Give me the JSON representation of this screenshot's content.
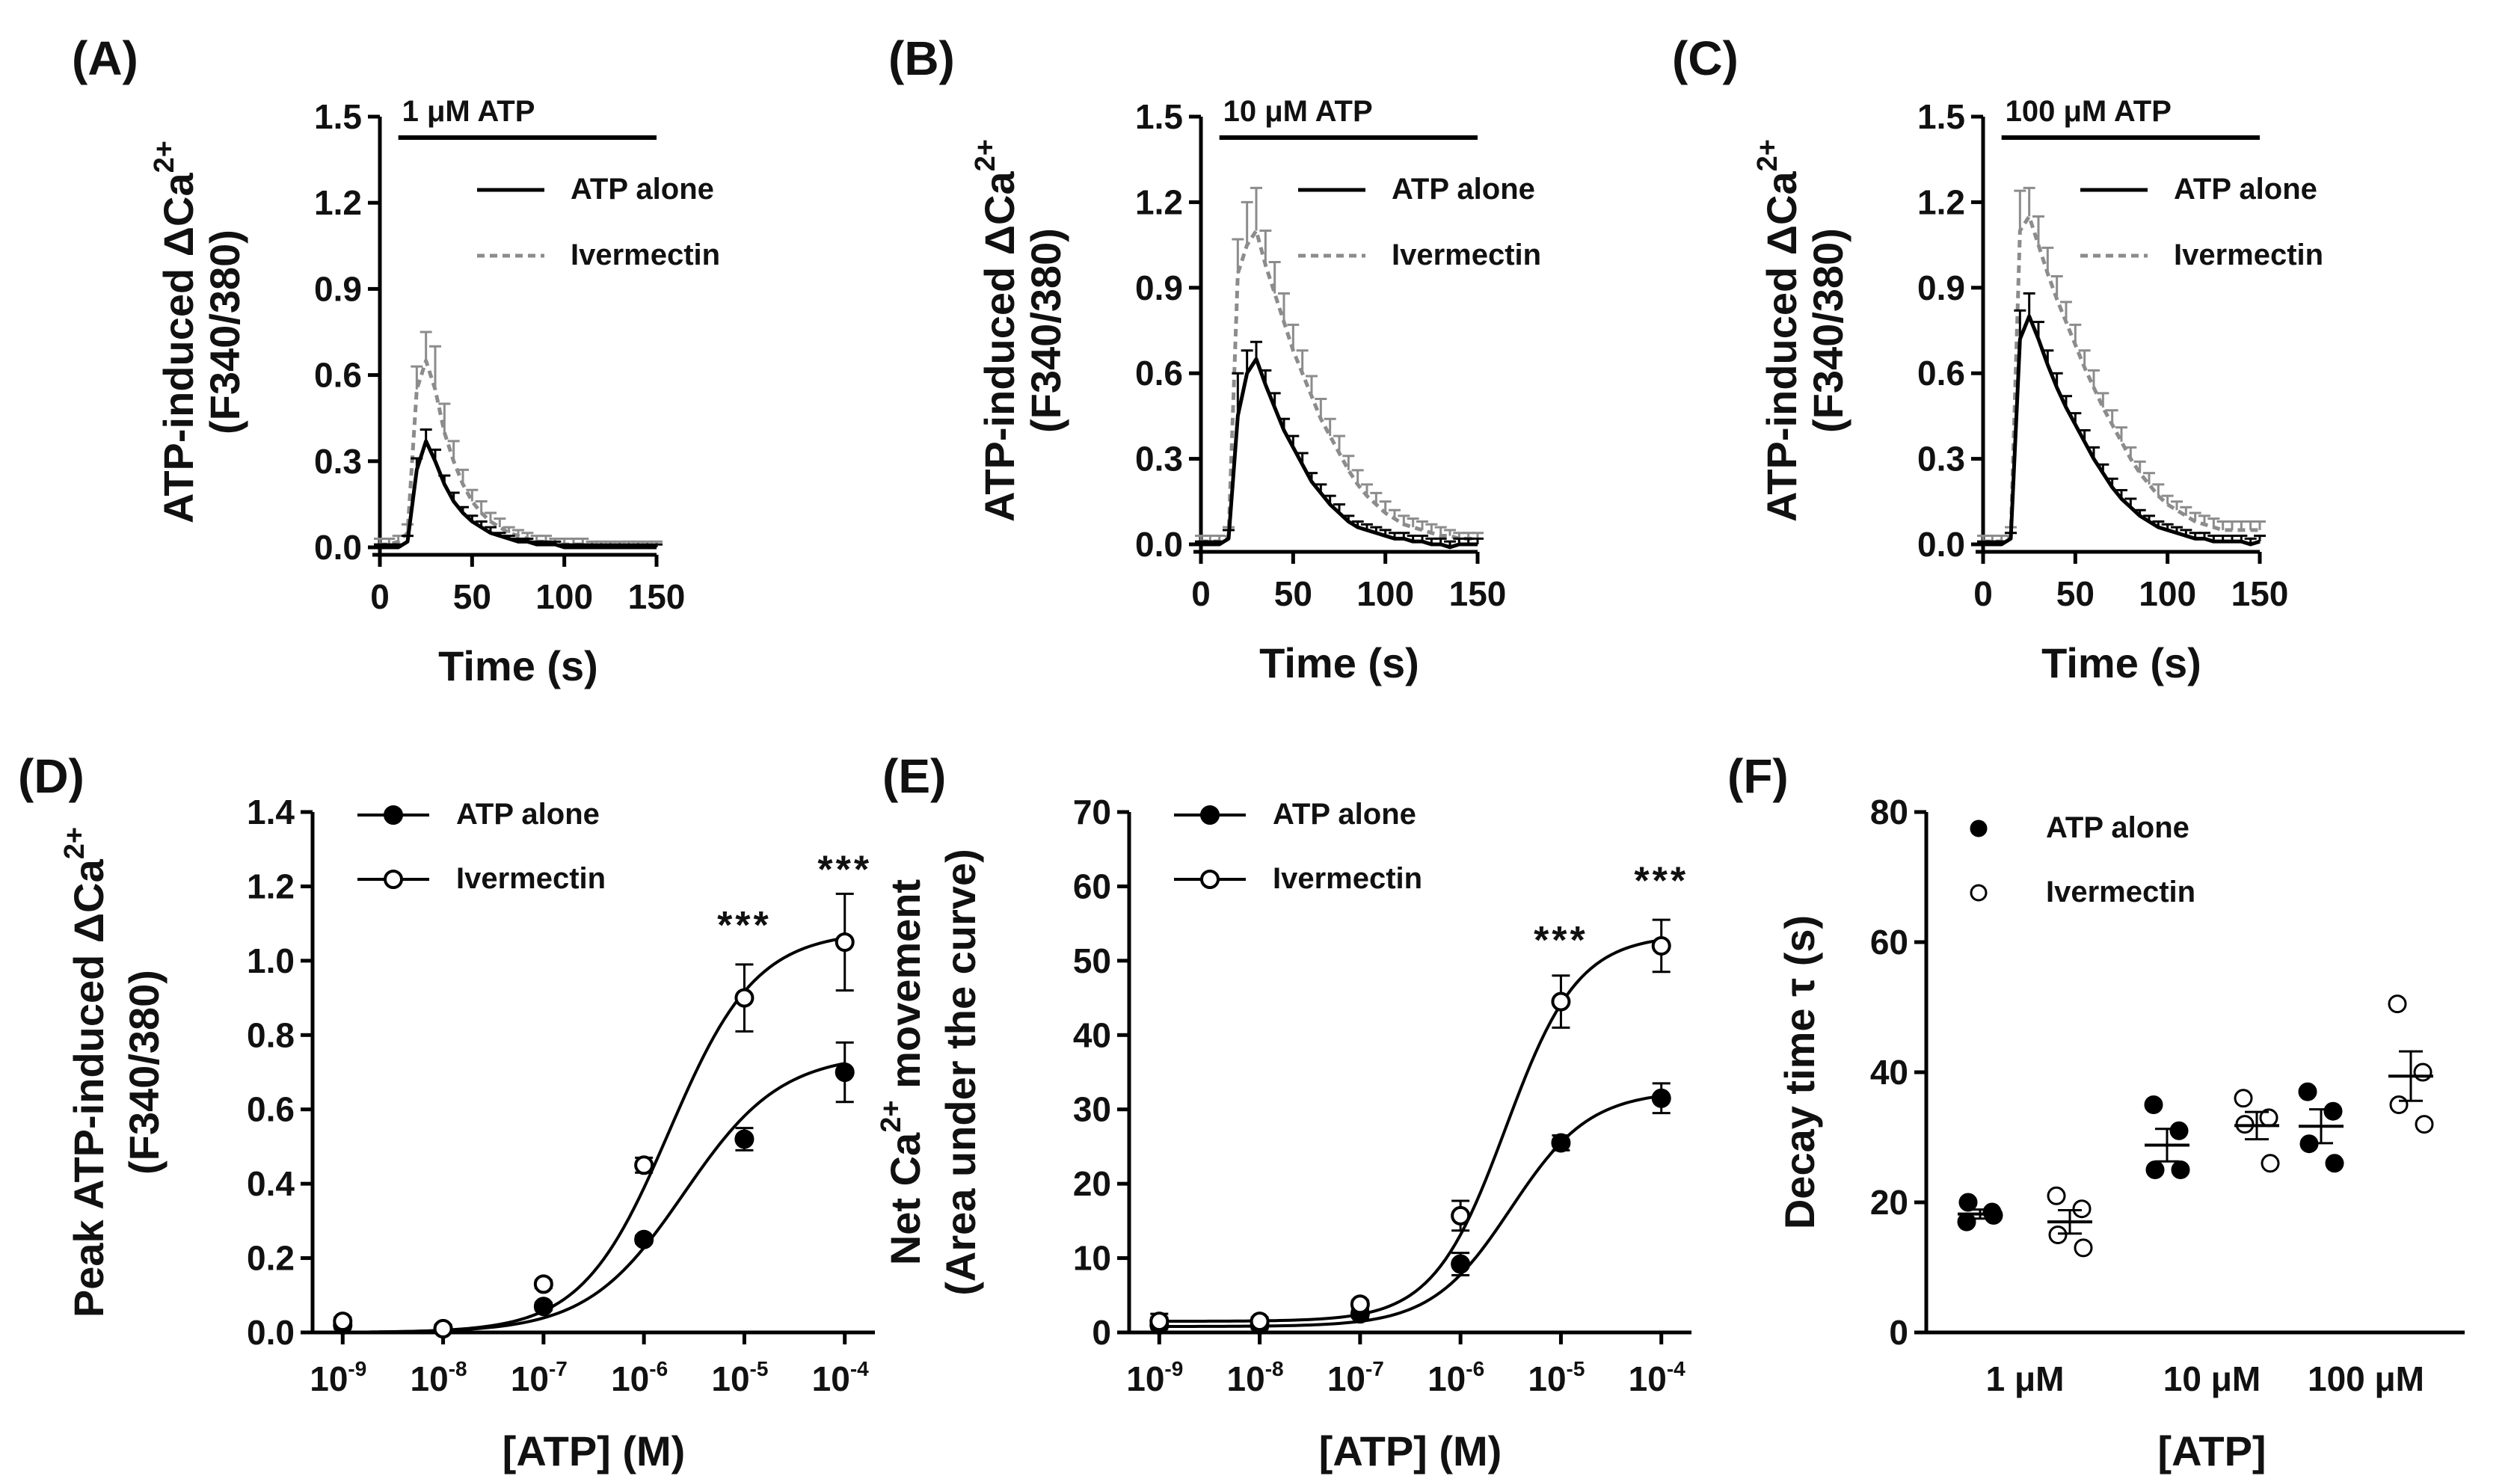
{
  "colors": {
    "black": "#000000",
    "grey": "#8c8c8c"
  },
  "chart_data": [
    {
      "id": "A",
      "type": "line",
      "panel_label": "(A)",
      "title_bar": "1 μM ATP",
      "ylabel_line1": "ATP-induced ΔCa",
      "ylabel_sup": "2+",
      "ylabel_line2": "(F340/380)",
      "xlabel": "Time (s)",
      "xlim": [
        0,
        150
      ],
      "ylim": [
        0,
        1.5
      ],
      "xticks": [
        "0",
        "50",
        "100",
        "150"
      ],
      "yticks": [
        "0.0",
        "0.3",
        "0.6",
        "0.9",
        "1.2",
        "1.5"
      ],
      "legend": [
        "ATP alone",
        "Ivermectin"
      ],
      "series": [
        {
          "name": "ATP alone",
          "color": "#000000",
          "dash": "none",
          "x": [
            0,
            5,
            10,
            15,
            20,
            25,
            30,
            35,
            40,
            45,
            50,
            55,
            60,
            65,
            70,
            75,
            80,
            85,
            90,
            95,
            100,
            105,
            110,
            115,
            120,
            125,
            130,
            135,
            140,
            145,
            150
          ],
          "y": [
            0,
            0,
            0,
            0.02,
            0.27,
            0.37,
            0.3,
            0.22,
            0.16,
            0.12,
            0.09,
            0.07,
            0.05,
            0.04,
            0.03,
            0.02,
            0.02,
            0.01,
            0.01,
            0.01,
            0,
            0,
            0,
            0,
            0,
            0,
            0,
            0,
            0,
            0,
            0
          ],
          "err": [
            0.01,
            0.01,
            0.01,
            0.02,
            0.04,
            0.04,
            0.04,
            0.03,
            0.03,
            0.02,
            0.02,
            0.02,
            0.02,
            0.01,
            0.01,
            0.01,
            0.01,
            0.01,
            0.01,
            0.01,
            0.01,
            0.01,
            0.01,
            0.01,
            0.01,
            0.01,
            0.01,
            0.01,
            0.01,
            0.01,
            0.01
          ]
        },
        {
          "name": "Ivermectin",
          "color": "#8c8c8c",
          "dash": "10,7",
          "x": [
            0,
            5,
            10,
            15,
            20,
            25,
            30,
            35,
            40,
            45,
            50,
            55,
            60,
            65,
            70,
            75,
            80,
            85,
            90,
            95,
            100,
            105,
            110,
            115,
            120,
            125,
            130,
            135,
            140,
            145,
            150
          ],
          "y": [
            0.01,
            0.01,
            0.02,
            0.05,
            0.55,
            0.65,
            0.55,
            0.4,
            0.3,
            0.22,
            0.16,
            0.12,
            0.09,
            0.07,
            0.05,
            0.04,
            0.03,
            0.02,
            0.02,
            0.01,
            0.01,
            0.01,
            0.01,
            0,
            0,
            0,
            0,
            0,
            0,
            0,
            0
          ],
          "err": [
            0.02,
            0.02,
            0.02,
            0.03,
            0.08,
            0.1,
            0.15,
            0.1,
            0.07,
            0.05,
            0.04,
            0.04,
            0.03,
            0.03,
            0.02,
            0.02,
            0.02,
            0.02,
            0.02,
            0.02,
            0.02,
            0.02,
            0.02,
            0.02,
            0.02,
            0.02,
            0.02,
            0.02,
            0.02,
            0.02,
            0.02
          ]
        }
      ]
    },
    {
      "id": "B",
      "type": "line",
      "panel_label": "(B)",
      "title_bar": "10 μM ATP",
      "ylabel_line1": "ATP-induced ΔCa",
      "ylabel_sup": "2+",
      "ylabel_line2": "(F340/380)",
      "xlabel": "Time (s)",
      "xlim": [
        0,
        150
      ],
      "ylim": [
        0,
        1.5
      ],
      "xticks": [
        "0",
        "50",
        "100",
        "150"
      ],
      "yticks": [
        "0.0",
        "0.3",
        "0.6",
        "0.9",
        "1.2",
        "1.5"
      ],
      "legend": [
        "ATP alone",
        "Ivermectin"
      ],
      "series": [
        {
          "name": "ATP alone",
          "color": "#000000",
          "dash": "none",
          "x": [
            0,
            5,
            10,
            15,
            20,
            25,
            30,
            35,
            40,
            45,
            50,
            55,
            60,
            65,
            70,
            75,
            80,
            85,
            90,
            95,
            100,
            105,
            110,
            115,
            120,
            125,
            130,
            135,
            140,
            145,
            150
          ],
          "y": [
            0,
            0,
            0,
            0.02,
            0.45,
            0.6,
            0.65,
            0.56,
            0.48,
            0.4,
            0.34,
            0.28,
            0.22,
            0.18,
            0.14,
            0.11,
            0.08,
            0.06,
            0.05,
            0.04,
            0.03,
            0.02,
            0.02,
            0.01,
            0.01,
            0,
            0,
            -0.01,
            0,
            0,
            0
          ],
          "err": [
            0.01,
            0.01,
            0.01,
            0.03,
            0.15,
            0.08,
            0.06,
            0.05,
            0.05,
            0.04,
            0.04,
            0.04,
            0.03,
            0.03,
            0.03,
            0.03,
            0.02,
            0.02,
            0.02,
            0.02,
            0.02,
            0.02,
            0.02,
            0.02,
            0.02,
            0.02,
            0.02,
            0.02,
            0.02,
            0.02,
            0.02
          ]
        },
        {
          "name": "Ivermectin",
          "color": "#8c8c8c",
          "dash": "10,7",
          "x": [
            0,
            5,
            10,
            15,
            20,
            25,
            30,
            35,
            40,
            45,
            50,
            55,
            60,
            65,
            70,
            75,
            80,
            85,
            90,
            95,
            100,
            105,
            110,
            115,
            120,
            125,
            130,
            135,
            140,
            145,
            150
          ],
          "y": [
            0.01,
            0.01,
            0.01,
            0.03,
            0.95,
            1.05,
            1.1,
            0.98,
            0.88,
            0.78,
            0.68,
            0.6,
            0.52,
            0.44,
            0.38,
            0.32,
            0.26,
            0.21,
            0.17,
            0.14,
            0.11,
            0.09,
            0.07,
            0.06,
            0.05,
            0.04,
            0.03,
            0.03,
            0.02,
            0.02,
            0.02
          ],
          "err": [
            0.02,
            0.02,
            0.02,
            0.03,
            0.12,
            0.15,
            0.15,
            0.12,
            0.11,
            0.1,
            0.09,
            0.08,
            0.07,
            0.07,
            0.06,
            0.06,
            0.05,
            0.05,
            0.04,
            0.04,
            0.04,
            0.03,
            0.03,
            0.03,
            0.03,
            0.03,
            0.03,
            0.02,
            0.02,
            0.02,
            0.02
          ]
        }
      ]
    },
    {
      "id": "C",
      "type": "line",
      "panel_label": "(C)",
      "title_bar": "100 μM ATP",
      "ylabel_line1": "ATP-induced ΔCa",
      "ylabel_sup": "2+",
      "ylabel_line2": "(F340/380)",
      "xlabel": "Time (s)",
      "xlim": [
        0,
        150
      ],
      "ylim": [
        0,
        1.5
      ],
      "xticks": [
        "0",
        "50",
        "100",
        "150"
      ],
      "yticks": [
        "0.0",
        "0.3",
        "0.6",
        "0.9",
        "1.2",
        "1.5"
      ],
      "legend": [
        "ATP alone",
        "Ivermectin"
      ],
      "series": [
        {
          "name": "ATP alone",
          "color": "#000000",
          "dash": "none",
          "x": [
            0,
            5,
            10,
            15,
            20,
            25,
            30,
            35,
            40,
            45,
            50,
            55,
            60,
            65,
            70,
            75,
            80,
            85,
            90,
            95,
            100,
            105,
            110,
            115,
            120,
            125,
            130,
            135,
            140,
            145,
            150
          ],
          "y": [
            0,
            0,
            0,
            0.02,
            0.72,
            0.8,
            0.72,
            0.63,
            0.55,
            0.48,
            0.42,
            0.36,
            0.3,
            0.25,
            0.2,
            0.16,
            0.13,
            0.1,
            0.08,
            0.06,
            0.05,
            0.04,
            0.03,
            0.02,
            0.02,
            0.01,
            0.01,
            0.01,
            0.01,
            0,
            0.01
          ],
          "err": [
            0.01,
            0.01,
            0.01,
            0.02,
            0.1,
            0.08,
            0.06,
            0.05,
            0.05,
            0.04,
            0.04,
            0.04,
            0.04,
            0.03,
            0.03,
            0.03,
            0.03,
            0.02,
            0.02,
            0.02,
            0.02,
            0.02,
            0.02,
            0.02,
            0.02,
            0.02,
            0.02,
            0.02,
            0.02,
            0.02,
            0.02
          ]
        },
        {
          "name": "Ivermectin",
          "color": "#8c8c8c",
          "dash": "10,7",
          "x": [
            0,
            5,
            10,
            15,
            20,
            25,
            30,
            35,
            40,
            45,
            50,
            55,
            60,
            65,
            70,
            75,
            80,
            85,
            90,
            95,
            100,
            105,
            110,
            115,
            120,
            125,
            130,
            135,
            140,
            145,
            150
          ],
          "y": [
            0.01,
            0.01,
            0.01,
            0.03,
            1.1,
            1.15,
            1.05,
            0.95,
            0.86,
            0.78,
            0.7,
            0.62,
            0.55,
            0.48,
            0.42,
            0.36,
            0.3,
            0.25,
            0.21,
            0.17,
            0.14,
            0.12,
            0.1,
            0.08,
            0.07,
            0.06,
            0.05,
            0.05,
            0.05,
            0.05,
            0.05
          ],
          "err": [
            0.02,
            0.02,
            0.02,
            0.03,
            0.14,
            0.1,
            0.1,
            0.09,
            0.08,
            0.07,
            0.07,
            0.06,
            0.06,
            0.05,
            0.05,
            0.05,
            0.04,
            0.04,
            0.04,
            0.04,
            0.03,
            0.03,
            0.03,
            0.03,
            0.03,
            0.03,
            0.03,
            0.03,
            0.03,
            0.03,
            0.03
          ]
        }
      ]
    },
    {
      "id": "D",
      "type": "scatter",
      "panel_label": "(D)",
      "ylabel_line1": "Peak ATP-induced ΔCa",
      "ylabel_sup": "2+",
      "ylabel_line2": "(F340/380)",
      "xlabel": "[ATP] (M)",
      "xlim": [
        -9.3,
        -3.7
      ],
      "ylim": [
        0,
        1.4
      ],
      "xtick_values": [
        -9,
        -8,
        -7,
        -6,
        -5,
        -4
      ],
      "xticks": [
        "10",
        "10",
        "10",
        "10",
        "10",
        "10"
      ],
      "xtick_exps": [
        "-9",
        "-8",
        "-7",
        "-6",
        "-5",
        "-4"
      ],
      "yticks": [
        "0.0",
        "0.2",
        "0.4",
        "0.6",
        "0.8",
        "1.0",
        "1.2",
        "1.4"
      ],
      "legend": [
        "ATP alone",
        "Ivermectin"
      ],
      "annotations": [
        {
          "text": "***",
          "x": -5,
          "y": 1.08
        },
        {
          "text": "***",
          "x": -4,
          "y": 1.23
        }
      ],
      "series": [
        {
          "name": "ATP alone",
          "marker": "filled",
          "x": [
            -9,
            -8,
            -7,
            -6,
            -5,
            -4
          ],
          "y": [
            0.02,
            0.01,
            0.07,
            0.25,
            0.52,
            0.7
          ],
          "err": [
            0.01,
            0.01,
            0.01,
            0.01,
            0.03,
            0.08
          ],
          "fit": {
            "bottom": 0.0,
            "top": 0.75,
            "logEC50": -5.6,
            "hill": 0.9
          }
        },
        {
          "name": "Ivermectin",
          "marker": "open",
          "x": [
            -9,
            -8,
            -7,
            -6,
            -5,
            -4
          ],
          "y": [
            0.03,
            0.01,
            0.13,
            0.45,
            0.9,
            1.05
          ],
          "err": [
            0.01,
            0.01,
            0.01,
            0.02,
            0.09,
            0.13
          ],
          "fit": {
            "bottom": 0.0,
            "top": 1.08,
            "logEC50": -5.75,
            "hill": 1.0
          }
        }
      ]
    },
    {
      "id": "E",
      "type": "scatter",
      "panel_label": "(E)",
      "ylabel_line1": "Net Ca",
      "ylabel_sup": "2+",
      "ylabel_after": " movement",
      "ylabel_line2": "(Area under the curve)",
      "xlabel": "[ATP] (M)",
      "xlim": [
        -9.3,
        -3.7
      ],
      "ylim": [
        0,
        70
      ],
      "xtick_values": [
        -9,
        -8,
        -7,
        -6,
        -5,
        -4
      ],
      "xticks": [
        "10",
        "10",
        "10",
        "10",
        "10",
        "10"
      ],
      "xtick_exps": [
        "-9",
        "-8",
        "-7",
        "-6",
        "-5",
        "-4"
      ],
      "yticks": [
        "0",
        "10",
        "20",
        "30",
        "40",
        "50",
        "60",
        "70"
      ],
      "legend": [
        "ATP alone",
        "Ivermectin"
      ],
      "annotations": [
        {
          "text": "***",
          "x": -5,
          "y": 52
        },
        {
          "text": "***",
          "x": -4,
          "y": 60
        }
      ],
      "series": [
        {
          "name": "ATP alone",
          "marker": "filled",
          "x": [
            -9,
            -8,
            -7,
            -6,
            -5,
            -4
          ],
          "y": [
            1,
            1,
            2.5,
            9.2,
            25.5,
            31.5
          ],
          "err": [
            1,
            0.5,
            0.5,
            1.5,
            1,
            2
          ],
          "fit": {
            "bottom": 0.8,
            "top": 32.5,
            "logEC50": -5.5,
            "hill": 1.1
          }
        },
        {
          "name": "Ivermectin",
          "marker": "open",
          "x": [
            -9,
            -8,
            -7,
            -6,
            -5,
            -4
          ],
          "y": [
            1.5,
            1.5,
            3.8,
            15.7,
            44.5,
            52
          ],
          "err": [
            1,
            0.5,
            0.5,
            2,
            3.5,
            3.5
          ],
          "fit": {
            "bottom": 1.5,
            "top": 53.5,
            "logEC50": -5.55,
            "hill": 1.2
          }
        }
      ]
    },
    {
      "id": "F",
      "type": "scatter",
      "panel_label": "(F)",
      "ylabel_line1": "Decay time τ (s)",
      "ylabel_sup": "",
      "ylabel_line2": "",
      "xlabel": "[ATP]",
      "ylim": [
        0,
        80
      ],
      "categories": [
        "1 μM",
        "10 μM",
        "100 μM"
      ],
      "yticks": [
        "0",
        "20",
        "40",
        "60",
        "80"
      ],
      "legend": [
        "ATP alone",
        "Ivermectin"
      ],
      "series": [
        {
          "name": "ATP alone",
          "marker": "filled",
          "groups": [
            {
              "category": "1 μM",
              "points": [
                17,
                18.5,
                20,
                18
              ],
              "mean": 18.2,
              "sem": 0.7
            },
            {
              "category": "10 μM",
              "points": [
                35,
                31,
                25,
                25
              ],
              "mean": 28.8,
              "sem": 2.5
            },
            {
              "category": "100 μM",
              "points": [
                37,
                34,
                29,
                26
              ],
              "mean": 31.7,
              "sem": 2.6
            }
          ]
        },
        {
          "name": "Ivermectin",
          "marker": "open",
          "groups": [
            {
              "category": "1 μM",
              "points": [
                21,
                19,
                15,
                13
              ],
              "mean": 17.0,
              "sem": 1.8
            },
            {
              "category": "10 μM",
              "points": [
                36,
                33,
                32,
                26
              ],
              "mean": 31.8,
              "sem": 2.1
            },
            {
              "category": "100 μM",
              "points": [
                50.5,
                40,
                35,
                32
              ],
              "mean": 39.4,
              "sem": 3.8
            }
          ]
        }
      ]
    }
  ]
}
